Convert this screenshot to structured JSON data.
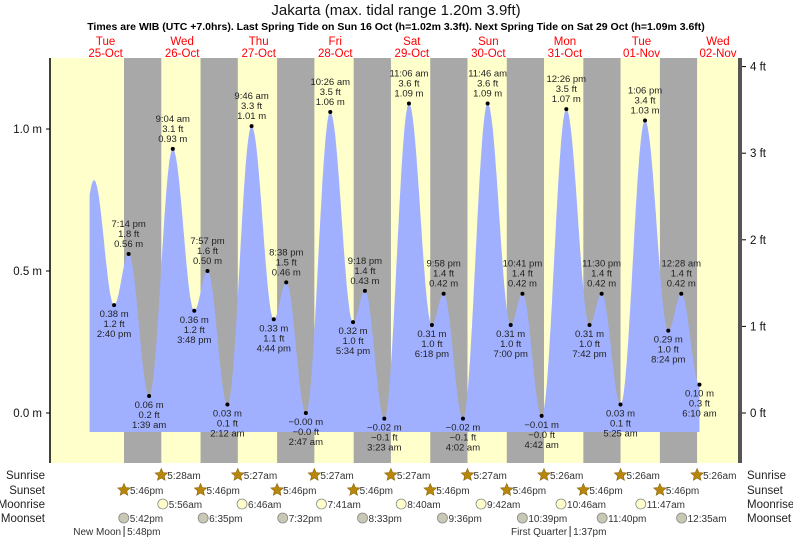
{
  "chart_data": {
    "type": "area",
    "title": "Jakarta (max. tidal range 1.20m 3.9ft)",
    "subtitle": "Times are WIB (UTC +7.0hrs). Last Spring Tide on Sun 16 Oct (h=1.02m 3.3ft). Next Spring Tide on Sat 29 Oct (h=1.09m 3.6ft)",
    "x_unit": "hours since Tue 25-Oct 00:00",
    "xlim": [
      -5.4,
      210
    ],
    "ylim_m": [
      -0.16,
      1.27
    ],
    "y_ticks_m": [
      {
        "v": 0,
        "label": "0.0 m"
      },
      {
        "v": 0.5,
        "label": "0.5 m"
      },
      {
        "v": 1.0,
        "label": "1.0 m"
      }
    ],
    "y_ticks_ft": [
      {
        "v": 0,
        "label": "0 ft"
      },
      {
        "v": 1,
        "label": "1 ft"
      },
      {
        "v": 2,
        "label": "2 ft"
      },
      {
        "v": 3,
        "label": "3 ft"
      },
      {
        "v": 4,
        "label": "4 ft"
      }
    ],
    "days": [
      {
        "dow": "Tue",
        "date": "25-Oct",
        "noon": 12
      },
      {
        "dow": "Wed",
        "date": "26-Oct",
        "noon": 36
      },
      {
        "dow": "Thu",
        "date": "27-Oct",
        "noon": 60
      },
      {
        "dow": "Fri",
        "date": "28-Oct",
        "noon": 84
      },
      {
        "dow": "Sat",
        "date": "29-Oct",
        "noon": 108
      },
      {
        "dow": "Sun",
        "date": "30-Oct",
        "noon": 132
      },
      {
        "dow": "Mon",
        "date": "31-Oct",
        "noon": 156
      },
      {
        "dow": "Tue",
        "date": "01-Nov",
        "noon": 180
      },
      {
        "dow": "Wed",
        "date": "02-Nov",
        "noon": 204
      }
    ],
    "curve_start_hour": 7.0,
    "curve_first_peak": {
      "hour": 8.4,
      "value": 0.82
    },
    "tides": [
      {
        "type": "low",
        "hour": 14.67,
        "value": 0.38,
        "time": "2:40 pm",
        "ft": "1.2 ft",
        "m": "0.38 m"
      },
      {
        "type": "high",
        "hour": 19.23,
        "value": 0.56,
        "time": "7:14 pm",
        "ft": "1.8 ft",
        "m": "0.56 m"
      },
      {
        "type": "low",
        "hour": 25.65,
        "value": 0.06,
        "time": "1:39 am",
        "ft": "0.2 ft",
        "m": "0.06 m"
      },
      {
        "type": "high",
        "hour": 33.07,
        "value": 0.93,
        "time": "9:04 am",
        "ft": "3.1 ft",
        "m": "0.93 m"
      },
      {
        "type": "low",
        "hour": 39.8,
        "value": 0.36,
        "time": "3:48 pm",
        "ft": "1.2 ft",
        "m": "0.36 m"
      },
      {
        "type": "high",
        "hour": 43.95,
        "value": 0.5,
        "time": "7:57 pm",
        "ft": "1.6 ft",
        "m": "0.50 m"
      },
      {
        "type": "low",
        "hour": 50.2,
        "value": 0.03,
        "time": "2:12 am",
        "ft": "0.1 ft",
        "m": "0.03 m"
      },
      {
        "type": "high",
        "hour": 57.77,
        "value": 1.01,
        "time": "9:46 am",
        "ft": "3.3 ft",
        "m": "1.01 m"
      },
      {
        "type": "low",
        "hour": 64.73,
        "value": 0.33,
        "time": "4:44 pm",
        "ft": "1.1 ft",
        "m": "0.33 m"
      },
      {
        "type": "high",
        "hour": 68.63,
        "value": 0.46,
        "time": "8:38 pm",
        "ft": "1.5 ft",
        "m": "0.46 m"
      },
      {
        "type": "low",
        "hour": 74.78,
        "value": 0.0,
        "time": "2:47 am",
        "ft": "−0.0 ft",
        "m": "−0.00 m"
      },
      {
        "type": "high",
        "hour": 82.43,
        "value": 1.06,
        "time": "10:26 am",
        "ft": "3.5 ft",
        "m": "1.06 m"
      },
      {
        "type": "low",
        "hour": 89.57,
        "value": 0.32,
        "time": "5:34 pm",
        "ft": "1.0 ft",
        "m": "0.32 m"
      },
      {
        "type": "high",
        "hour": 93.3,
        "value": 0.43,
        "time": "9:18 pm",
        "ft": "1.4 ft",
        "m": "0.43 m"
      },
      {
        "type": "low",
        "hour": 99.38,
        "value": -0.02,
        "time": "3:23 am",
        "ft": "−0.1 ft",
        "m": "−0.02 m"
      },
      {
        "type": "high",
        "hour": 107.1,
        "value": 1.09,
        "time": "11:06 am",
        "ft": "3.6 ft",
        "m": "1.09 m"
      },
      {
        "type": "low",
        "hour": 114.3,
        "value": 0.31,
        "time": "6:18 pm",
        "ft": "1.0 ft",
        "m": "0.31 m"
      },
      {
        "type": "high",
        "hour": 117.97,
        "value": 0.42,
        "time": "9:58 pm",
        "ft": "1.4 ft",
        "m": "0.42 m"
      },
      {
        "type": "low",
        "hour": 124.03,
        "value": -0.02,
        "time": "4:02 am",
        "ft": "−0.1 ft",
        "m": "−0.02 m"
      },
      {
        "type": "high",
        "hour": 131.77,
        "value": 1.09,
        "time": "11:46 am",
        "ft": "3.6 ft",
        "m": "1.09 m"
      },
      {
        "type": "low",
        "hour": 139.0,
        "value": 0.31,
        "time": "7:00 pm",
        "ft": "1.0 ft",
        "m": "0.31 m"
      },
      {
        "type": "high",
        "hour": 142.68,
        "value": 0.42,
        "time": "10:41 pm",
        "ft": "1.4 ft",
        "m": "0.42 m"
      },
      {
        "type": "low",
        "hour": 148.7,
        "value": -0.01,
        "time": "4:42 am",
        "ft": "−0.0 ft",
        "m": "−0.01 m"
      },
      {
        "type": "high",
        "hour": 156.43,
        "value": 1.07,
        "time": "12:26 pm",
        "ft": "3.5 ft",
        "m": "1.07 m"
      },
      {
        "type": "low",
        "hour": 163.7,
        "value": 0.31,
        "time": "7:42 pm",
        "ft": "1.0 ft",
        "m": "0.31 m"
      },
      {
        "type": "high",
        "hour": 167.5,
        "value": 0.42,
        "time": "11:30 pm",
        "ft": "1.4 ft",
        "m": "0.42 m"
      },
      {
        "type": "low",
        "hour": 173.42,
        "value": 0.03,
        "time": "5:25 am",
        "ft": "0.1 ft",
        "m": "0.03 m"
      },
      {
        "type": "high",
        "hour": 181.1,
        "value": 1.03,
        "time": "1:06 pm",
        "ft": "3.4 ft",
        "m": "1.03 m"
      },
      {
        "type": "low",
        "hour": 188.4,
        "value": 0.29,
        "time": "8:24 pm",
        "ft": "1.0 ft",
        "m": "0.29 m"
      },
      {
        "type": "high",
        "hour": 192.47,
        "value": 0.42,
        "time": "12:28 am",
        "ft": "1.4 ft",
        "m": "0.42 m"
      },
      {
        "type": "low",
        "hour": 198.17,
        "value": 0.1,
        "time": "6:10 am",
        "ft": "0.3 ft",
        "m": "0.10 m"
      }
    ],
    "nights": [
      [
        17.77,
        29.47
      ],
      [
        41.77,
        53.45
      ],
      [
        65.77,
        77.45
      ],
      [
        89.77,
        101.45
      ],
      [
        113.77,
        125.45
      ],
      [
        137.77,
        149.43
      ],
      [
        161.77,
        173.43
      ],
      [
        185.77,
        197.43
      ]
    ]
  },
  "rows": {
    "sunrise_label": "Sunrise",
    "sunset_label": "Sunset",
    "moonrise_label": "Moonrise",
    "moonset_label": "Moonset",
    "sunrise": [
      {
        "hour": 29.47,
        "text": "5:28am"
      },
      {
        "hour": 53.45,
        "text": "5:27am"
      },
      {
        "hour": 77.45,
        "text": "5:27am"
      },
      {
        "hour": 101.45,
        "text": "5:27am"
      },
      {
        "hour": 125.45,
        "text": "5:27am"
      },
      {
        "hour": 149.43,
        "text": "5:26am"
      },
      {
        "hour": 173.43,
        "text": "5:26am"
      },
      {
        "hour": 197.43,
        "text": "5:26am"
      }
    ],
    "sunset": [
      {
        "hour": 17.77,
        "text": "5:46pm"
      },
      {
        "hour": 41.77,
        "text": "5:46pm"
      },
      {
        "hour": 65.77,
        "text": "5:46pm"
      },
      {
        "hour": 89.77,
        "text": "5:46pm"
      },
      {
        "hour": 113.77,
        "text": "5:46pm"
      },
      {
        "hour": 137.77,
        "text": "5:46pm"
      },
      {
        "hour": 161.77,
        "text": "5:46pm"
      },
      {
        "hour": 185.77,
        "text": "5:46pm"
      }
    ],
    "moonrise": [
      {
        "hour": 29.93,
        "text": "5:56am"
      },
      {
        "hour": 54.77,
        "text": "6:46am"
      },
      {
        "hour": 79.68,
        "text": "7:41am"
      },
      {
        "hour": 104.67,
        "text": "8:40am"
      },
      {
        "hour": 129.7,
        "text": "9:42am"
      },
      {
        "hour": 154.77,
        "text": "10:46am"
      },
      {
        "hour": 179.78,
        "text": "11:47am"
      }
    ],
    "moonset": [
      {
        "hour": 17.7,
        "text": "5:42pm"
      },
      {
        "hour": 42.58,
        "text": "6:35pm"
      },
      {
        "hour": 67.53,
        "text": "7:32pm"
      },
      {
        "hour": 92.55,
        "text": "8:33pm"
      },
      {
        "hour": 117.6,
        "text": "9:36pm"
      },
      {
        "hour": 142.65,
        "text": "10:39pm"
      },
      {
        "hour": 167.67,
        "text": "11:40pm"
      },
      {
        "hour": 192.58,
        "text": "12:35am"
      }
    ],
    "phases": [
      {
        "hour": 17.8,
        "name": "New Moon",
        "time": "5:48pm"
      },
      {
        "hour": 157.62,
        "name": "First Quarter",
        "time": "1:37pm"
      }
    ]
  },
  "colors": {
    "day": "#ffffcc",
    "night": "#a8a8a8",
    "water": "#a0b0ff",
    "day_label": "#ff0000",
    "sun": "#b8860b",
    "moonrise": "#ffffcc",
    "moonset": "#c8c8b4"
  }
}
